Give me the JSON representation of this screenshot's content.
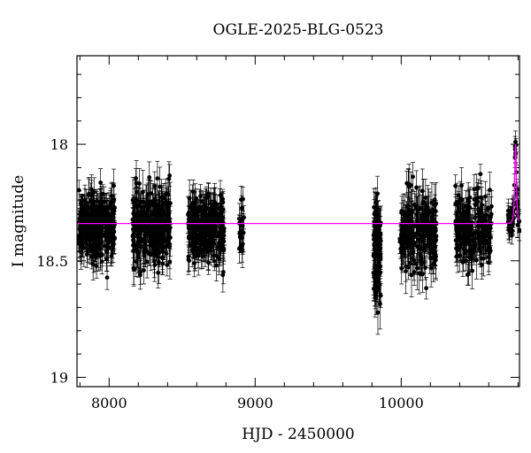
{
  "chart_data": {
    "type": "scatter",
    "title": "OGLE-2025-BLG-0523",
    "xlabel": "HJD - 2450000",
    "ylabel": "I magnitude",
    "xlim": [
      7780,
      10810
    ],
    "ylim": [
      19.04,
      17.62
    ],
    "y_inverted": true,
    "x_ticks": [
      8000,
      9000,
      10000
    ],
    "y_ticks": [
      18,
      18.5,
      19
    ],
    "grid": false,
    "legend": "none",
    "colors": {
      "points": "#000000",
      "model": "#ff00ff"
    },
    "series": [
      {
        "type": "points_with_errorbars",
        "seasons": [
          {
            "x_range": [
              7790,
              8040
            ],
            "mean": 18.35,
            "scatter": 0.07,
            "error": 0.06,
            "n": 300
          },
          {
            "x_range": [
              8160,
              8420
            ],
            "mean": 18.35,
            "scatter": 0.08,
            "error": 0.07,
            "n": 280
          },
          {
            "x_range": [
              8540,
              8790
            ],
            "mean": 18.37,
            "scatter": 0.07,
            "error": 0.06,
            "n": 270
          },
          {
            "x_range": [
              8890,
              8925
            ],
            "mean": 18.35,
            "scatter": 0.07,
            "error": 0.06,
            "n": 20
          },
          {
            "x_range": [
              9810,
              9860
            ],
            "mean": 18.45,
            "scatter": 0.1,
            "error": 0.08,
            "n": 120
          },
          {
            "x_range": [
              9990,
              10240
            ],
            "mean": 18.38,
            "scatter": 0.08,
            "error": 0.07,
            "n": 230
          },
          {
            "x_range": [
              10370,
              10620
            ],
            "mean": 18.36,
            "scatter": 0.07,
            "error": 0.06,
            "n": 220
          },
          {
            "x_range": [
              10730,
              10810
            ],
            "mean": null,
            "scatter": 0.03,
            "error": 0.04,
            "n": 70
          }
        ]
      },
      {
        "type": "line",
        "baseline": 18.34,
        "peak_x": 10783,
        "peak_mag": 18.0,
        "tE": 8
      }
    ]
  }
}
